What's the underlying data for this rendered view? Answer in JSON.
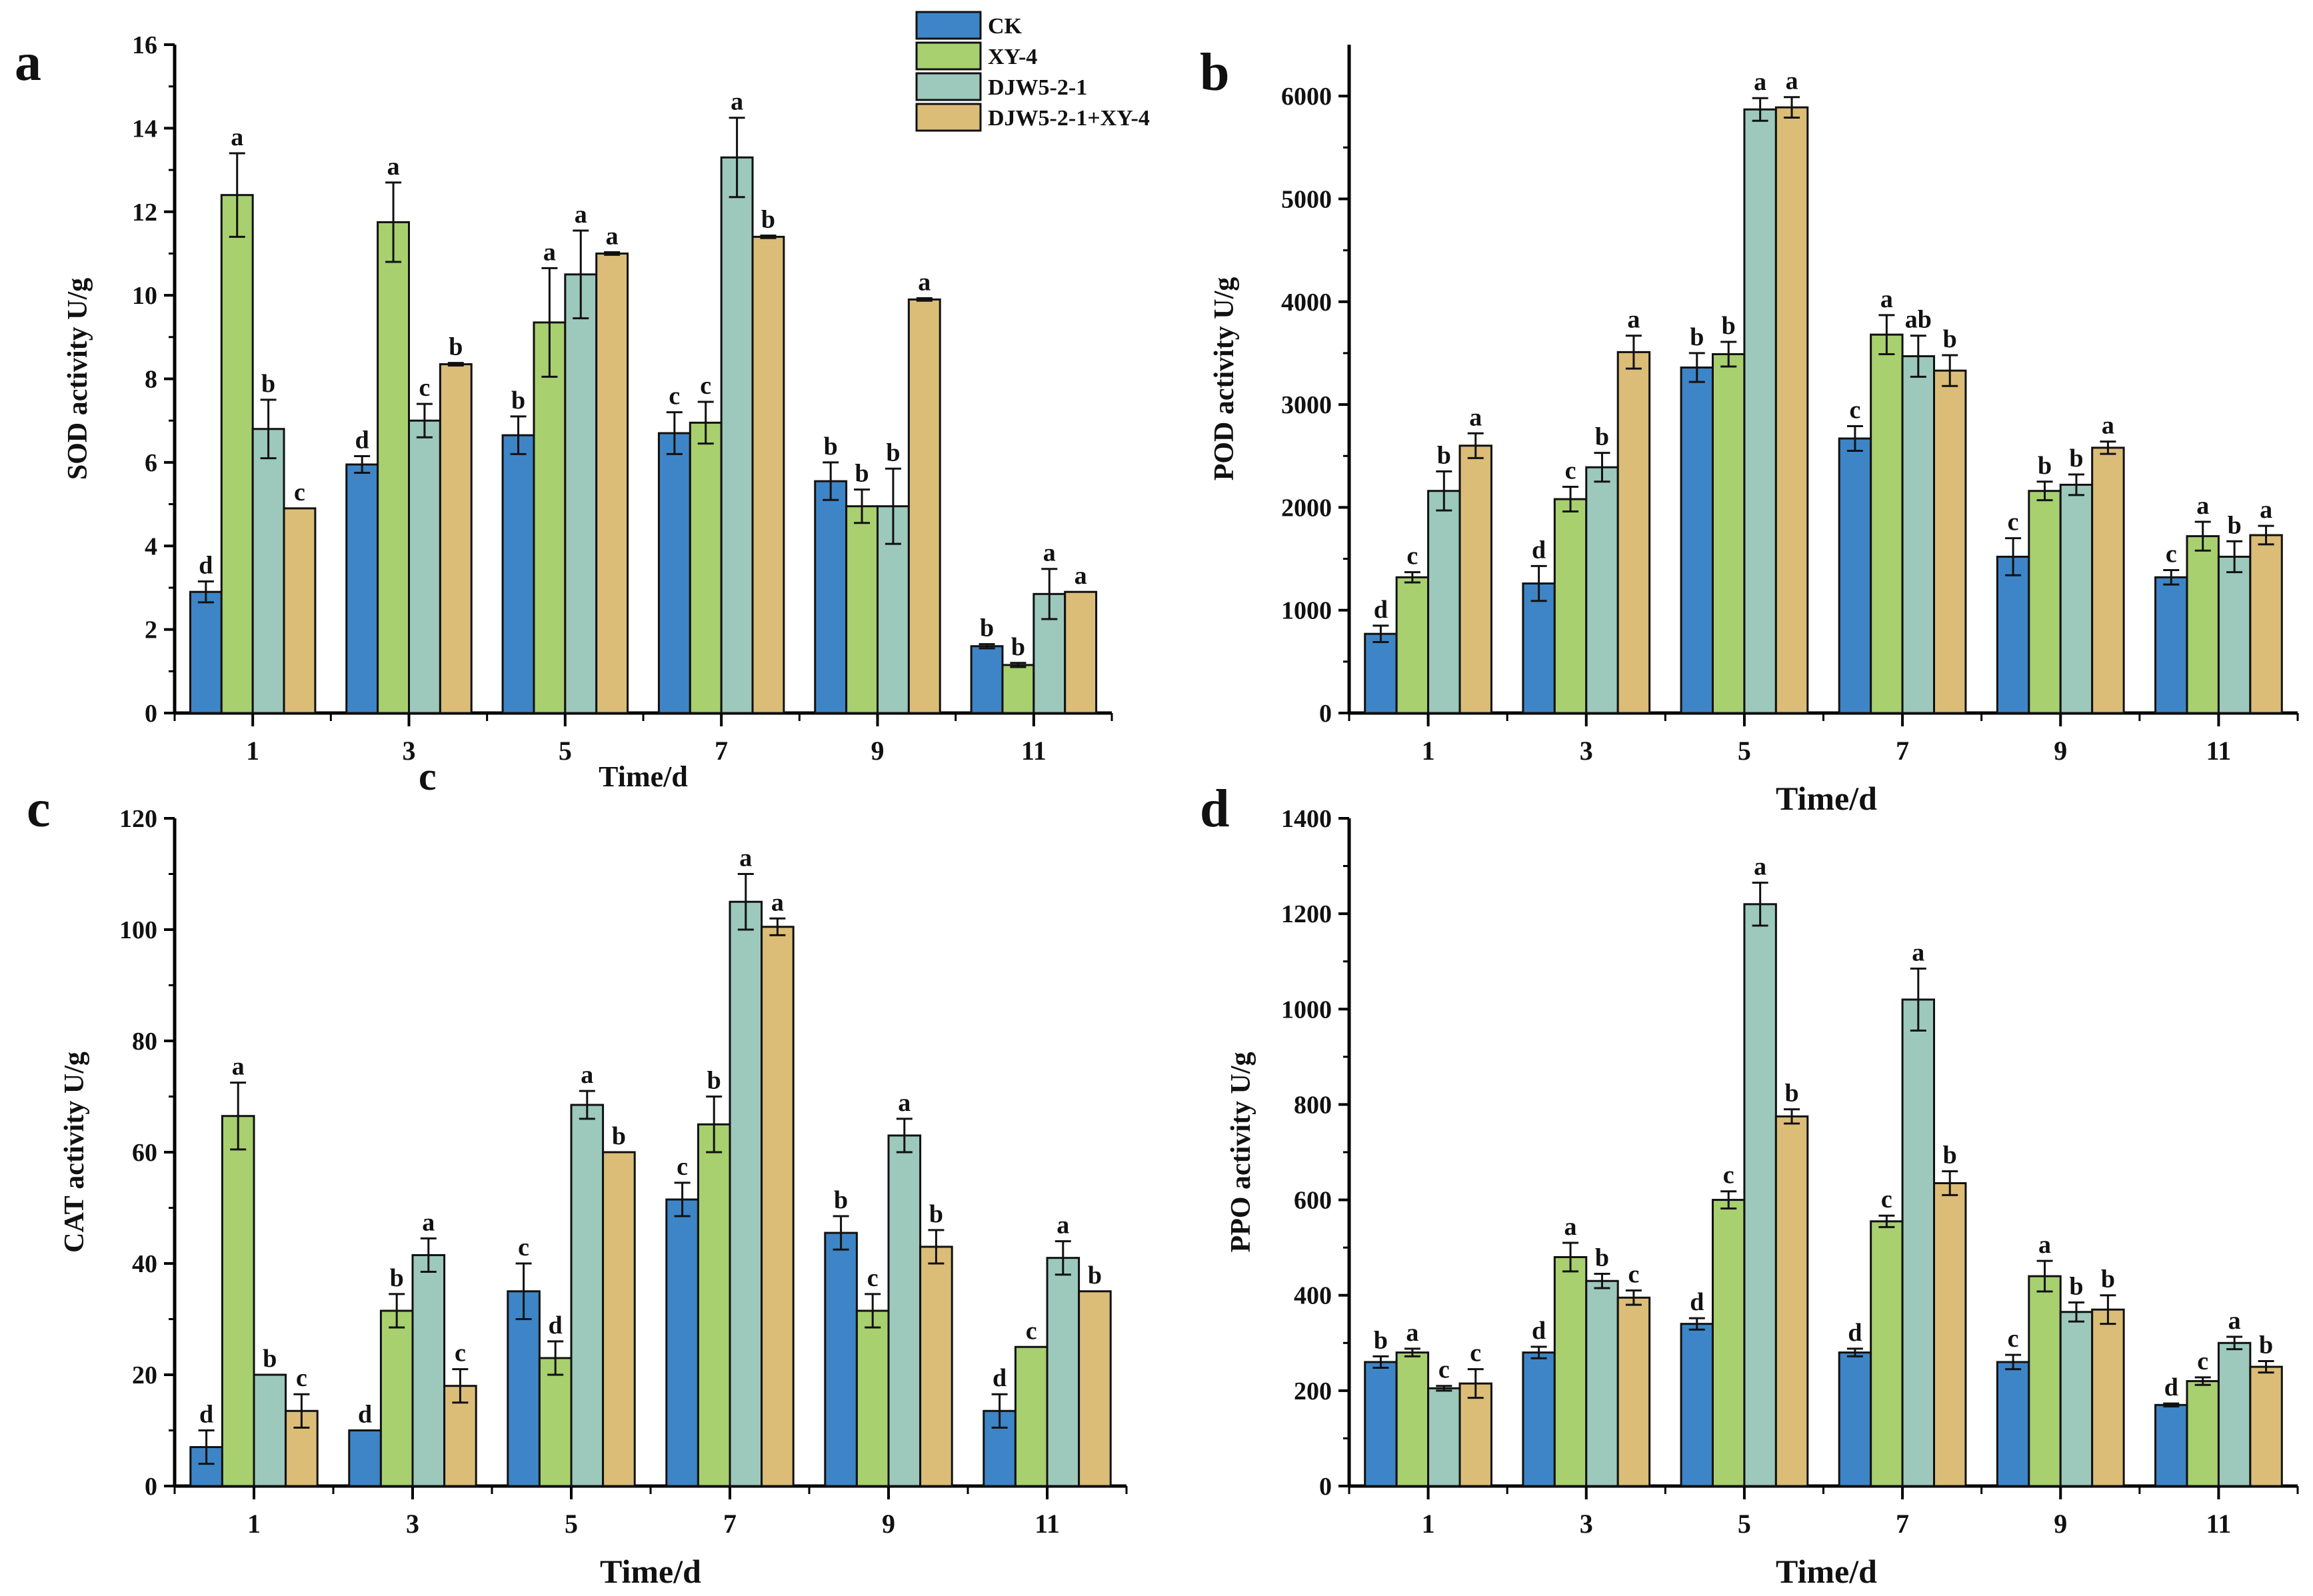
{
  "colors": {
    "CK": "#3d85c6",
    "XY-4": "#a8d06f",
    "DJW5-2-1": "#9cc9bc",
    "DJW5-2-1+XY-4": "#dbbd78"
  },
  "legend": [
    "CK",
    "XY-4",
    "DJW5-2-1",
    "DJW5-2-1+XY-4"
  ],
  "stray_label": "c",
  "chart_data": [
    {
      "panel": "a",
      "type": "bar",
      "title": "",
      "xlabel": "Time/d",
      "ylabel": "SOD activity U/g",
      "categories": [
        "1",
        "3",
        "5",
        "7",
        "9",
        "11"
      ],
      "ylim": [
        0,
        16
      ],
      "yticks": [
        0,
        2,
        4,
        6,
        8,
        10,
        12,
        14,
        16
      ],
      "series": [
        {
          "name": "CK",
          "values": [
            2.9,
            5.95,
            6.65,
            6.7,
            5.55,
            1.6
          ],
          "errors": [
            0.25,
            0.2,
            0.45,
            0.5,
            0.45,
            0.05
          ],
          "letters": [
            "d",
            "d",
            "b",
            "c",
            "b",
            "b"
          ]
        },
        {
          "name": "XY-4",
          "values": [
            12.4,
            11.75,
            9.35,
            6.95,
            4.95,
            1.15
          ],
          "errors": [
            1.0,
            0.95,
            1.3,
            0.5,
            0.4,
            0.05
          ],
          "letters": [
            "a",
            "a",
            "a",
            "c",
            "b",
            "b"
          ]
        },
        {
          "name": "DJW5-2-1",
          "values": [
            6.8,
            7.0,
            10.5,
            13.3,
            4.95,
            2.85
          ],
          "errors": [
            0.7,
            0.4,
            1.05,
            0.95,
            0.9,
            0.6
          ],
          "letters": [
            "b",
            "c",
            "a",
            "a",
            "b",
            "a"
          ]
        },
        {
          "name": "DJW5-2-1+XY-4",
          "values": [
            4.9,
            8.35,
            11.0,
            11.4,
            9.9,
            2.9
          ],
          "errors": [
            0,
            0.03,
            0.03,
            0.03,
            0.03,
            0
          ],
          "letters": [
            "c",
            "b",
            "a",
            "b",
            "a",
            "a"
          ]
        }
      ]
    },
    {
      "panel": "b",
      "type": "bar",
      "title": "",
      "xlabel": "Time/d",
      "ylabel": "POD activity U/g",
      "categories": [
        "1",
        "3",
        "5",
        "7",
        "9",
        "11"
      ],
      "ylim": [
        0,
        6500
      ],
      "yticks": [
        0,
        1000,
        2000,
        3000,
        4000,
        5000,
        6000
      ],
      "series": [
        {
          "name": "CK",
          "values": [
            770,
            1260,
            3360,
            2670,
            1520,
            1320
          ],
          "errors": [
            80,
            170,
            140,
            120,
            180,
            70
          ],
          "letters": [
            "d",
            "d",
            "b",
            "c",
            "c",
            "c"
          ]
        },
        {
          "name": "XY-4",
          "values": [
            1320,
            2080,
            3490,
            3680,
            2160,
            1720
          ],
          "errors": [
            50,
            120,
            120,
            190,
            90,
            140
          ],
          "letters": [
            "c",
            "c",
            "b",
            "a",
            "b",
            "a"
          ]
        },
        {
          "name": "DJW5-2-1",
          "values": [
            2160,
            2390,
            5870,
            3470,
            2220,
            1520
          ],
          "errors": [
            190,
            140,
            110,
            200,
            100,
            150
          ],
          "letters": [
            "b",
            "b",
            "a",
            "ab",
            "b",
            "b"
          ]
        },
        {
          "name": "DJW5-2-1+XY-4",
          "values": [
            2600,
            3510,
            5890,
            3330,
            2580,
            1730
          ],
          "errors": [
            120,
            160,
            100,
            150,
            60,
            90
          ],
          "letters": [
            "a",
            "a",
            "a",
            "b",
            "a",
            "a"
          ]
        }
      ]
    },
    {
      "panel": "c",
      "type": "bar",
      "title": "",
      "xlabel": "Time/d",
      "ylabel": "CAT activity U/g",
      "categories": [
        "1",
        "3",
        "5",
        "7",
        "9",
        "11"
      ],
      "ylim": [
        0,
        120
      ],
      "yticks": [
        0,
        20,
        40,
        60,
        80,
        100,
        120
      ],
      "series": [
        {
          "name": "CK",
          "values": [
            7,
            10,
            35,
            51.5,
            45.5,
            13.5
          ],
          "errors": [
            3,
            0,
            5,
            3,
            3,
            3
          ],
          "letters": [
            "d",
            "d",
            "c",
            "c",
            "b",
            "d"
          ]
        },
        {
          "name": "XY-4",
          "values": [
            66.5,
            31.5,
            23,
            65,
            31.5,
            25
          ],
          "errors": [
            6,
            3,
            3,
            5,
            3,
            0
          ],
          "letters": [
            "a",
            "b",
            "d",
            "b",
            "c",
            "c"
          ]
        },
        {
          "name": "DJW5-2-1",
          "values": [
            20,
            41.5,
            68.5,
            105,
            63,
            41
          ],
          "errors": [
            0,
            3,
            2.5,
            5,
            3,
            3
          ],
          "letters": [
            "b",
            "a",
            "a",
            "a",
            "a",
            "a"
          ]
        },
        {
          "name": "DJW5-2-1+XY-4",
          "values": [
            13.5,
            18,
            60,
            100.5,
            43,
            35
          ],
          "errors": [
            3,
            3,
            0,
            1.5,
            3,
            0
          ],
          "letters": [
            "c",
            "c",
            "b",
            "a",
            "b",
            "b"
          ]
        }
      ]
    },
    {
      "panel": "d",
      "type": "bar",
      "title": "",
      "xlabel": "Time/d",
      "ylabel": "PPO activity U/g",
      "categories": [
        "1",
        "3",
        "5",
        "7",
        "9",
        "11"
      ],
      "ylim": [
        0,
        1400
      ],
      "yticks": [
        0,
        200,
        400,
        600,
        800,
        1000,
        1200,
        1400
      ],
      "series": [
        {
          "name": "CK",
          "values": [
            260,
            280,
            340,
            280,
            260,
            170
          ],
          "errors": [
            12,
            12,
            12,
            8,
            15,
            3
          ],
          "letters": [
            "b",
            "d",
            "d",
            "d",
            "c",
            "d"
          ]
        },
        {
          "name": "XY-4",
          "values": [
            280,
            480,
            600,
            555,
            440,
            220
          ],
          "errors": [
            8,
            30,
            18,
            12,
            32,
            8
          ],
          "letters": [
            "a",
            "a",
            "c",
            "c",
            "a",
            "c"
          ]
        },
        {
          "name": "DJW5-2-1",
          "values": [
            205,
            430,
            1220,
            1020,
            365,
            300
          ],
          "errors": [
            5,
            15,
            45,
            65,
            20,
            13
          ],
          "letters": [
            "c",
            "b",
            "a",
            "a",
            "b",
            "a"
          ]
        },
        {
          "name": "DJW5-2-1+XY-4",
          "values": [
            215,
            395,
            775,
            635,
            370,
            250
          ],
          "errors": [
            30,
            15,
            15,
            25,
            30,
            12
          ],
          "letters": [
            "c",
            "c",
            "b",
            "b",
            "b",
            "b"
          ]
        }
      ]
    }
  ]
}
